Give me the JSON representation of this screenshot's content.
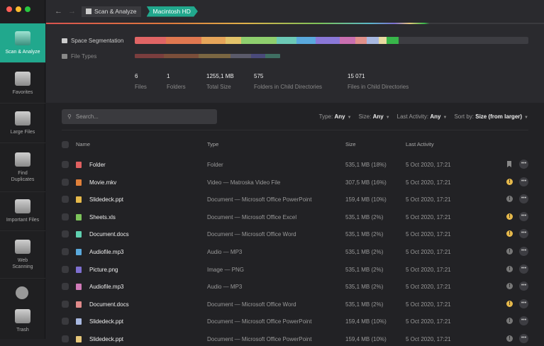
{
  "sidebar": {
    "items": [
      {
        "label": "Scan & Analyze",
        "active": true
      },
      {
        "label": "Favorites"
      },
      {
        "label": "Large Files"
      },
      {
        "label": "Find Duplicates"
      },
      {
        "label": "Important Files"
      },
      {
        "label": "Web Scanning"
      },
      {
        "label": "Trash"
      }
    ]
  },
  "breadcrumb": {
    "root": "Scan & Analyze",
    "current": "Macintosh HD"
  },
  "header": {
    "space_label": "Space Segmentation",
    "types_label": "File Types",
    "segment_colors": [
      "#e06565",
      "#e07850",
      "#e6a55a",
      "#e3c36a",
      "#8fcf6e",
      "#6cc9b6",
      "#5aa9dd",
      "#8a78d8",
      "#c96fb0",
      "#e0908a",
      "#a8b8e0",
      "#e8d9a0",
      "#38b64a"
    ],
    "type_colors": [
      "#7a3e3e",
      "#7a4e3a",
      "#7a6642",
      "#5a5a6a",
      "#4a4a7a",
      "#3f6f62"
    ]
  },
  "stats": [
    {
      "value": "6",
      "label": "Files"
    },
    {
      "value": "1",
      "label": "Folders"
    },
    {
      "value": "1255,1 MB",
      "label": "Total Size"
    },
    {
      "value": "575",
      "label": "Folders in Child Directories"
    },
    {
      "value": "15 071",
      "label": "Files in Child Directories"
    }
  ],
  "search": {
    "placeholder": "Search..."
  },
  "filters": [
    {
      "label": "Type:",
      "value": "Any"
    },
    {
      "label": "Size:",
      "value": "Any"
    },
    {
      "label": "Last Activity:",
      "value": "Any"
    },
    {
      "label": "Sort by:",
      "value": "Size (from larger)"
    }
  ],
  "columns": {
    "name": "Name",
    "type": "Type",
    "size": "Size",
    "date": "Last Activity"
  },
  "rows": [
    {
      "name": "Folder",
      "type": "Folder",
      "size": "535,1 MB (18%)",
      "date": "5 Oct 2020, 17:21",
      "color": "#e06060",
      "status": "bookmark"
    },
    {
      "name": "Movie.mkv",
      "type": "Video — Matroska Video File",
      "size": "307,5 MB (16%)",
      "date": "5 Oct 2020, 17:21",
      "color": "#e0803a",
      "status": "warning"
    },
    {
      "name": "Slidedeck.ppt",
      "type": "Document — Microsoft Office PowerPoint",
      "size": "159,4 MB (10%)",
      "date": "5 Oct 2020, 17:21",
      "color": "#e6b94b",
      "status": "info"
    },
    {
      "name": "Sheets.xls",
      "type": "Document — Microsoft Office Excel",
      "size": "535,1 MB (2%)",
      "date": "5 Oct 2020, 17:21",
      "color": "#7cc35a",
      "status": "warning"
    },
    {
      "name": "Document.docs",
      "type": "Document — Microsoft Office Word",
      "size": "535,1 MB (2%)",
      "date": "5 Oct 2020, 17:21",
      "color": "#5fd0b0",
      "status": "warning"
    },
    {
      "name": "Audiofile.mp3",
      "type": "Audio — MP3",
      "size": "535,1 MB (2%)",
      "date": "5 Oct 2020, 17:21",
      "color": "#5aa9dd",
      "status": "info"
    },
    {
      "name": "Picture.png",
      "type": "Image — PNG",
      "size": "535,1 MB (2%)",
      "date": "5 Oct 2020, 17:21",
      "color": "#7e6fd0",
      "status": "info"
    },
    {
      "name": "Audiofile.mp3",
      "type": "Audio — MP3",
      "size": "535,1 MB (2%)",
      "date": "5 Oct 2020, 17:21",
      "color": "#d07ab8",
      "status": "info"
    },
    {
      "name": "Document.docs",
      "type": "Document — Microsoft Office Word",
      "size": "535,1 MB (2%)",
      "date": "5 Oct 2020, 17:21",
      "color": "#e08a8a",
      "status": "warning"
    },
    {
      "name": "Slidedeck.ppt",
      "type": "Document — Microsoft Office PowerPoint",
      "size": "159,4 MB (10%)",
      "date": "5 Oct 2020, 17:21",
      "color": "#a8b8e0",
      "status": "info"
    },
    {
      "name": "Slidedeck.ppt",
      "type": "Document — Microsoft Office PowerPoint",
      "size": "159,4 MB (10%)",
      "date": "5 Oct 2020, 17:21",
      "color": "#e6c77a",
      "status": "info"
    }
  ]
}
